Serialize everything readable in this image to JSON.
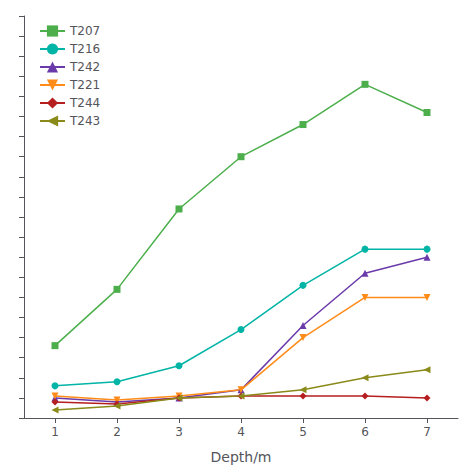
{
  "chart_data": {
    "type": "line",
    "xlabel": "Depth/m",
    "x": [
      1,
      2,
      3,
      4,
      5,
      6,
      7
    ],
    "series": [
      {
        "name": "T207",
        "color": "#4caf4c",
        "marker": "square",
        "values": [
          18,
          32,
          52,
          65,
          73,
          83,
          76
        ]
      },
      {
        "name": "T216",
        "color": "#00b4a6",
        "marker": "circle",
        "values": [
          8,
          9,
          13,
          22,
          33,
          42,
          42
        ]
      },
      {
        "name": "T242",
        "color": "#6a3aab",
        "marker": "triangle-up",
        "values": [
          5,
          4,
          5,
          7,
          23,
          36,
          40
        ]
      },
      {
        "name": "T221",
        "color": "#ff8c19",
        "marker": "triangle-down",
        "values": [
          5.5,
          4.5,
          5.5,
          7,
          20,
          30,
          30
        ]
      },
      {
        "name": "T244",
        "color": "#b51f1f",
        "marker": "diamond",
        "values": [
          4,
          3.5,
          5,
          5.5,
          5.5,
          5.5,
          5
        ]
      },
      {
        "name": "T243",
        "color": "#8a8a1a",
        "marker": "triangle-left",
        "values": [
          2,
          3,
          5,
          5.5,
          7,
          10,
          12
        ]
      }
    ],
    "xlim": [
      0.5,
      7.5
    ],
    "xticks": [
      1,
      2,
      3,
      4,
      5,
      6,
      7
    ],
    "ylim": [
      0,
      100
    ],
    "yticks": [
      0,
      5,
      10,
      15,
      20,
      25,
      30,
      35,
      40,
      45,
      50,
      55,
      60,
      65,
      70,
      75,
      80,
      85,
      90,
      95,
      100
    ],
    "tick_labels": "x",
    "grid": false,
    "legend": "upper left"
  }
}
